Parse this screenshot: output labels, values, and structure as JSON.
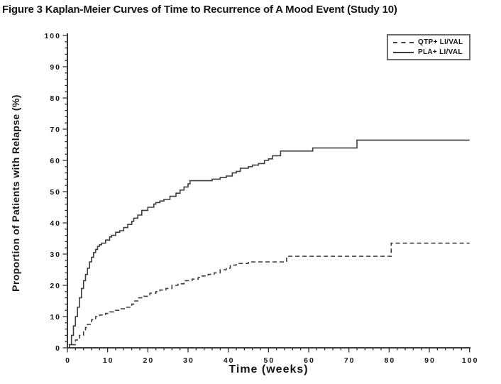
{
  "page": {
    "title": "Figure 3 Kaplan-Meier Curves of Time to Recurrence of A Mood Event (Study 10)"
  },
  "colors": {
    "background": "#ffffff",
    "text": "#161616",
    "axis": "#222222",
    "curve": "#3d3d3d",
    "legend_border": "#6b6b6b"
  },
  "chart_data": {
    "type": "line",
    "subtype": "kaplan-meier-step",
    "title": "Figure 3 Kaplan-Meier Curves of Time to Recurrence of A Mood Event (Study 10)",
    "xlabel": "Time (weeks)",
    "ylabel": "Proportion of Patients with Relapse (%)",
    "xlim": [
      0,
      100
    ],
    "ylim": [
      0,
      100
    ],
    "x_ticks": [
      0,
      10,
      20,
      30,
      40,
      50,
      60,
      70,
      80,
      90,
      100
    ],
    "y_ticks": [
      0,
      10,
      20,
      30,
      40,
      50,
      60,
      70,
      80,
      90,
      100
    ],
    "x_minor_tick_interval": 2,
    "y_minor_tick_interval": 2,
    "grid": false,
    "legend": {
      "position": "top-right",
      "entries": [
        {
          "label": "QTP+ LI/VAL",
          "line_style": "dashed"
        },
        {
          "label": "PLA+ LI/VAL",
          "line_style": "solid"
        }
      ]
    },
    "series": [
      {
        "name": "QTP+ LI/VAL",
        "line_style": "dashed",
        "color": "#3d3d3d",
        "step": true,
        "points": [
          [
            0,
            0
          ],
          [
            1,
            1
          ],
          [
            2,
            2.5
          ],
          [
            3,
            4
          ],
          [
            4,
            5.5
          ],
          [
            4.5,
            6.5
          ],
          [
            5,
            7.5
          ],
          [
            6,
            9
          ],
          [
            7,
            10
          ],
          [
            8,
            10.5
          ],
          [
            9.5,
            11
          ],
          [
            10.5,
            11.5
          ],
          [
            11.5,
            12
          ],
          [
            13,
            12.5
          ],
          [
            14.5,
            13
          ],
          [
            16,
            14
          ],
          [
            16.5,
            15
          ],
          [
            17.5,
            16
          ],
          [
            19,
            16.5
          ],
          [
            20.5,
            17.5
          ],
          [
            22,
            18
          ],
          [
            23,
            18.5
          ],
          [
            24.5,
            19
          ],
          [
            26,
            20
          ],
          [
            27.5,
            20.5
          ],
          [
            29,
            21.5
          ],
          [
            31,
            22
          ],
          [
            32.5,
            22.5
          ],
          [
            33.5,
            23
          ],
          [
            35,
            23.5
          ],
          [
            36.5,
            24
          ],
          [
            38,
            25
          ],
          [
            39.5,
            25.5
          ],
          [
            40.5,
            26.5
          ],
          [
            42,
            27
          ],
          [
            45,
            27.5
          ],
          [
            54.5,
            29.3
          ],
          [
            80.5,
            33.5
          ],
          [
            100,
            33.5
          ]
        ]
      },
      {
        "name": "PLA+ LI/VAL",
        "line_style": "solid",
        "color": "#3d3d3d",
        "step": true,
        "points": [
          [
            0,
            0
          ],
          [
            0.5,
            1
          ],
          [
            1,
            4
          ],
          [
            1.5,
            7
          ],
          [
            2,
            10
          ],
          [
            2.5,
            13
          ],
          [
            3,
            16
          ],
          [
            3.5,
            19
          ],
          [
            4,
            21.5
          ],
          [
            4.5,
            23.5
          ],
          [
            5,
            25.5
          ],
          [
            5.5,
            27.5
          ],
          [
            6,
            29
          ],
          [
            6.5,
            30.5
          ],
          [
            7,
            31.5
          ],
          [
            7.5,
            32.5
          ],
          [
            8,
            33
          ],
          [
            8.5,
            33.5
          ],
          [
            9.5,
            34.5
          ],
          [
            10.5,
            35.5
          ],
          [
            11,
            36
          ],
          [
            12,
            37
          ],
          [
            13,
            37.5
          ],
          [
            14,
            38.5
          ],
          [
            15,
            39.5
          ],
          [
            16,
            40.5
          ],
          [
            16.5,
            41.5
          ],
          [
            17.5,
            42.5
          ],
          [
            18.5,
            44
          ],
          [
            20,
            45
          ],
          [
            21.5,
            46
          ],
          [
            22,
            46.5
          ],
          [
            23,
            47
          ],
          [
            24,
            47.5
          ],
          [
            25.5,
            48.5
          ],
          [
            27,
            49.5
          ],
          [
            28,
            50.5
          ],
          [
            29,
            51.5
          ],
          [
            30,
            52.5
          ],
          [
            30.5,
            53.5
          ],
          [
            36,
            54
          ],
          [
            38,
            54.5
          ],
          [
            39.5,
            55
          ],
          [
            41,
            56
          ],
          [
            42,
            56.5
          ],
          [
            43,
            57.5
          ],
          [
            45,
            58
          ],
          [
            46,
            58.5
          ],
          [
            47.5,
            59
          ],
          [
            49,
            60
          ],
          [
            50,
            60.5
          ],
          [
            51,
            61.5
          ],
          [
            53,
            63
          ],
          [
            61,
            64
          ],
          [
            72,
            66.5
          ],
          [
            100,
            66.5
          ]
        ]
      }
    ]
  }
}
